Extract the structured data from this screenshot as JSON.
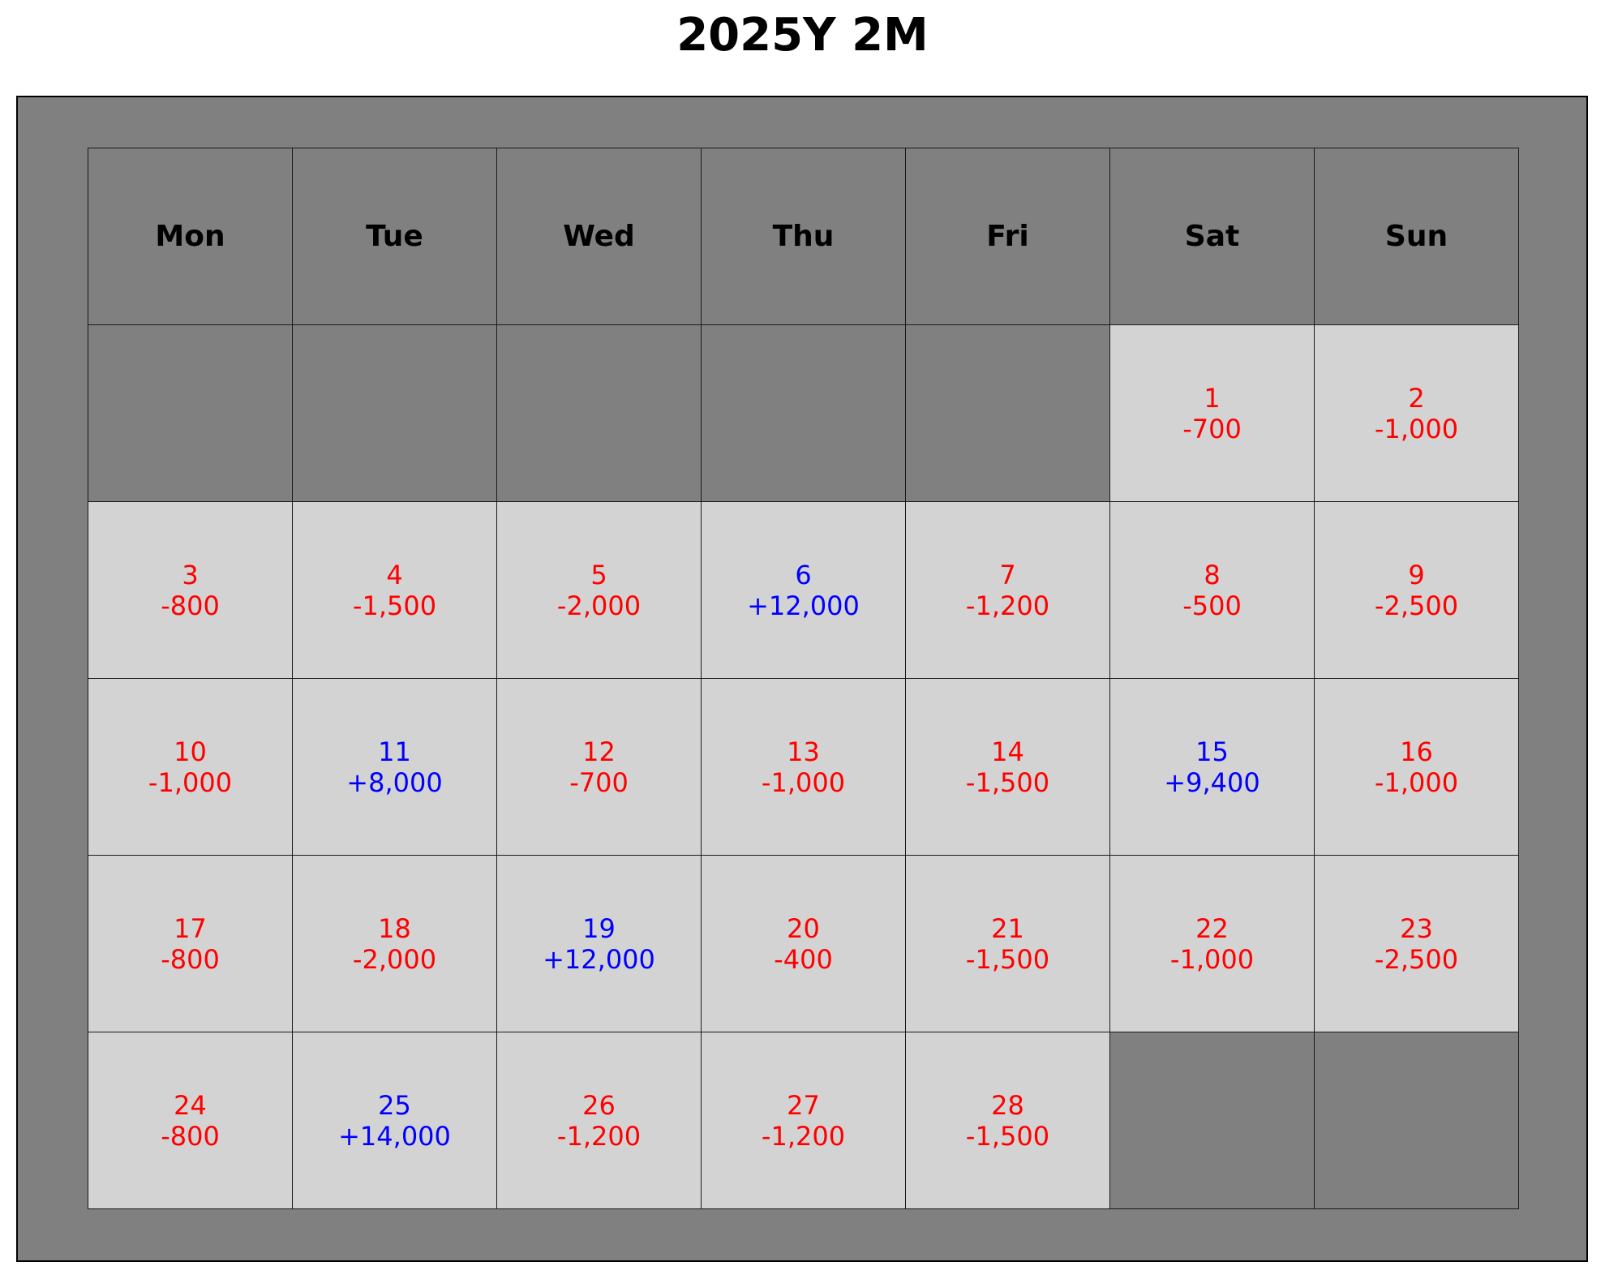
{
  "title": "2025Y 2M",
  "colors": {
    "frame": "#808080",
    "empty_cell": "#808080",
    "day_cell": "#d3d3d3",
    "income": "#0000ff",
    "expense": "#ff0000",
    "border": "#1a1a1a"
  },
  "chart_data": {
    "type": "table",
    "title": "2025Y 2M",
    "weekdays": [
      "Mon",
      "Tue",
      "Wed",
      "Thu",
      "Fri",
      "Sat",
      "Sun"
    ],
    "first_day_column": 5,
    "days": [
      {
        "day": 1,
        "amount": "-700"
      },
      {
        "day": 2,
        "amount": "-1,000"
      },
      {
        "day": 3,
        "amount": "-800"
      },
      {
        "day": 4,
        "amount": "-1,500"
      },
      {
        "day": 5,
        "amount": "-2,000"
      },
      {
        "day": 6,
        "amount": "+12,000"
      },
      {
        "day": 7,
        "amount": "-1,200"
      },
      {
        "day": 8,
        "amount": "-500"
      },
      {
        "day": 9,
        "amount": "-2,500"
      },
      {
        "day": 10,
        "amount": "-1,000"
      },
      {
        "day": 11,
        "amount": "+8,000"
      },
      {
        "day": 12,
        "amount": "-700"
      },
      {
        "day": 13,
        "amount": "-1,000"
      },
      {
        "day": 14,
        "amount": "-1,500"
      },
      {
        "day": 15,
        "amount": "+9,400"
      },
      {
        "day": 16,
        "amount": "-1,000"
      },
      {
        "day": 17,
        "amount": "-800"
      },
      {
        "day": 18,
        "amount": "-2,000"
      },
      {
        "day": 19,
        "amount": "+12,000"
      },
      {
        "day": 20,
        "amount": "-400"
      },
      {
        "day": 21,
        "amount": "-1,500"
      },
      {
        "day": 22,
        "amount": "-1,000"
      },
      {
        "day": 23,
        "amount": "-2,500"
      },
      {
        "day": 24,
        "amount": "-800"
      },
      {
        "day": 25,
        "amount": "+14,000"
      },
      {
        "day": 26,
        "amount": "-1,200"
      },
      {
        "day": 27,
        "amount": "-1,200"
      },
      {
        "day": 28,
        "amount": "-1,500"
      }
    ]
  }
}
